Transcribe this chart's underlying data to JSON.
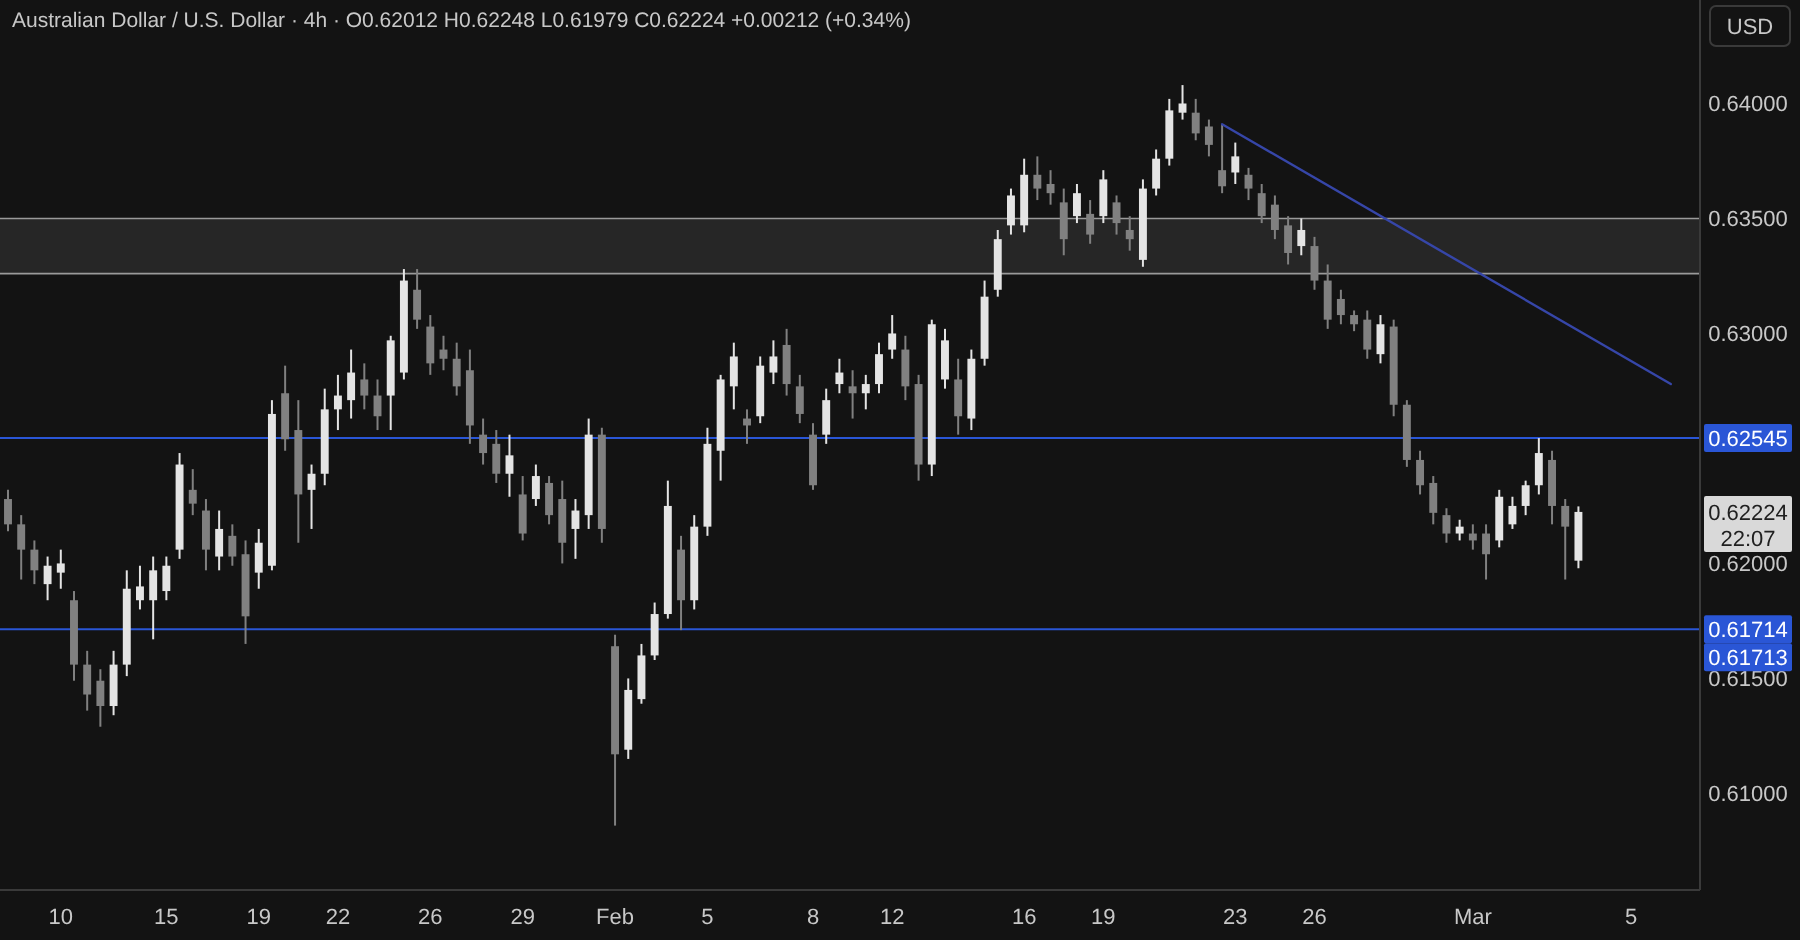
{
  "chart_data": {
    "type": "candlestick",
    "title": "Australian Dollar / U.S. Dollar · 4h · O0.62012 H0.62248 L0.61979 C0.62224 +0.00212 (+0.34%)",
    "ylabel": "USD",
    "categories": [
      null,
      null,
      null,
      null,
      "10",
      null,
      null,
      null,
      null,
      null,
      null,
      null,
      "15",
      null,
      null,
      null,
      null,
      null,
      null,
      "19",
      null,
      null,
      null,
      null,
      null,
      "22",
      null,
      null,
      null,
      null,
      null,
      null,
      "26",
      null,
      null,
      null,
      null,
      null,
      null,
      "29",
      null,
      null,
      null,
      null,
      null,
      null,
      "Feb",
      null,
      null,
      null,
      null,
      null,
      null,
      "5",
      null,
      null,
      null,
      null,
      null,
      null,
      null,
      "8",
      null,
      null,
      null,
      null,
      null,
      "12",
      null,
      null,
      null,
      null,
      null,
      null,
      null,
      null,
      null,
      "16",
      null,
      null,
      null,
      null,
      null,
      "19",
      null,
      null,
      null,
      null,
      null,
      null,
      null,
      null,
      null,
      "23",
      null,
      null,
      null,
      null,
      null,
      "26",
      null,
      null,
      null,
      null,
      null,
      null,
      null,
      null,
      null,
      null,
      null,
      "Mar",
      null,
      null,
      null,
      null,
      null,
      null,
      null,
      null,
      null,
      null,
      null,
      "5",
      null,
      null,
      null
    ],
    "ohlc": [
      [
        0.6228,
        0.6232,
        0.6214,
        0.6217
      ],
      [
        0.6217,
        0.6221,
        0.6193,
        0.6206
      ],
      [
        0.6206,
        0.621,
        0.6191,
        0.6197
      ],
      [
        0.6191,
        0.6203,
        0.6184,
        0.6199
      ],
      [
        0.6196,
        0.6206,
        0.6189,
        0.62
      ],
      [
        0.6184,
        0.6188,
        0.6149,
        0.6156
      ],
      [
        0.6156,
        0.6162,
        0.6136,
        0.6143
      ],
      [
        0.6149,
        0.6154,
        0.6129,
        0.6138
      ],
      [
        0.6138,
        0.6162,
        0.6134,
        0.6156
      ],
      [
        0.6156,
        0.6197,
        0.6151,
        0.6189
      ],
      [
        0.6184,
        0.6199,
        0.618,
        0.619
      ],
      [
        0.6184,
        0.6203,
        0.6167,
        0.6197
      ],
      [
        0.6188,
        0.6203,
        0.6184,
        0.6199
      ],
      [
        0.6206,
        0.6248,
        0.6202,
        0.6243
      ],
      [
        0.6232,
        0.6241,
        0.6221,
        0.6226
      ],
      [
        0.6223,
        0.6228,
        0.6197,
        0.6206
      ],
      [
        0.6203,
        0.6223,
        0.6197,
        0.6215
      ],
      [
        0.6212,
        0.6217,
        0.6199,
        0.6203
      ],
      [
        0.6204,
        0.621,
        0.6165,
        0.6177
      ],
      [
        0.6196,
        0.6215,
        0.6189,
        0.6209
      ],
      [
        0.6199,
        0.6271,
        0.6197,
        0.6265
      ],
      [
        0.6274,
        0.6286,
        0.6249,
        0.6254
      ],
      [
        0.6258,
        0.6271,
        0.6209,
        0.623
      ],
      [
        0.6232,
        0.6243,
        0.6215,
        0.6239
      ],
      [
        0.6239,
        0.6276,
        0.6234,
        0.6267
      ],
      [
        0.6267,
        0.6282,
        0.6258,
        0.6273
      ],
      [
        0.6271,
        0.6293,
        0.6263,
        0.6283
      ],
      [
        0.628,
        0.6287,
        0.6267,
        0.6273
      ],
      [
        0.6273,
        0.628,
        0.6258,
        0.6264
      ],
      [
        0.6273,
        0.6299,
        0.6258,
        0.6297
      ],
      [
        0.6283,
        0.6328,
        0.628,
        0.6323
      ],
      [
        0.6319,
        0.6328,
        0.6302,
        0.6306
      ],
      [
        0.6303,
        0.6308,
        0.6282,
        0.6287
      ],
      [
        0.6293,
        0.6299,
        0.6284,
        0.6289
      ],
      [
        0.6289,
        0.6296,
        0.6273,
        0.6277
      ],
      [
        0.6284,
        0.6293,
        0.6252,
        0.626
      ],
      [
        0.6256,
        0.6263,
        0.6243,
        0.6248
      ],
      [
        0.6252,
        0.6258,
        0.6235,
        0.6239
      ],
      [
        0.6239,
        0.6256,
        0.6229,
        0.6247
      ],
      [
        0.623,
        0.6238,
        0.621,
        0.6213
      ],
      [
        0.6228,
        0.6243,
        0.6225,
        0.6238
      ],
      [
        0.6235,
        0.6238,
        0.6217,
        0.6221
      ],
      [
        0.6228,
        0.6236,
        0.62,
        0.6209
      ],
      [
        0.6215,
        0.6228,
        0.6202,
        0.6223
      ],
      [
        0.6221,
        0.6263,
        0.6215,
        0.6256
      ],
      [
        0.6256,
        0.6259,
        0.6209,
        0.6215
      ],
      [
        0.6164,
        0.6169,
        0.6086,
        0.6117
      ],
      [
        0.6119,
        0.615,
        0.6115,
        0.6145
      ],
      [
        0.6141,
        0.6165,
        0.6139,
        0.616
      ],
      [
        0.616,
        0.6183,
        0.6158,
        0.6178
      ],
      [
        0.6178,
        0.6236,
        0.6176,
        0.6225
      ],
      [
        0.6206,
        0.6212,
        0.6171,
        0.6184
      ],
      [
        0.6184,
        0.6221,
        0.618,
        0.6216
      ],
      [
        0.6216,
        0.6259,
        0.6212,
        0.6252
      ],
      [
        0.6249,
        0.6282,
        0.6236,
        0.628
      ],
      [
        0.6277,
        0.6296,
        0.6267,
        0.629
      ],
      [
        0.6263,
        0.6267,
        0.6252,
        0.626
      ],
      [
        0.6264,
        0.629,
        0.6261,
        0.6286
      ],
      [
        0.6283,
        0.6297,
        0.6278,
        0.629
      ],
      [
        0.6295,
        0.6302,
        0.6273,
        0.6278
      ],
      [
        0.6277,
        0.6282,
        0.6261,
        0.6265
      ],
      [
        0.6256,
        0.6261,
        0.6232,
        0.6234
      ],
      [
        0.6256,
        0.6276,
        0.6252,
        0.6271
      ],
      [
        0.6278,
        0.6289,
        0.6274,
        0.6283
      ],
      [
        0.6277,
        0.6284,
        0.6263,
        0.6274
      ],
      [
        0.6274,
        0.6282,
        0.6267,
        0.6278
      ],
      [
        0.6278,
        0.6296,
        0.6274,
        0.6291
      ],
      [
        0.6293,
        0.6308,
        0.6289,
        0.63
      ],
      [
        0.6293,
        0.6299,
        0.6271,
        0.6277
      ],
      [
        0.6278,
        0.6282,
        0.6236,
        0.6243
      ],
      [
        0.6243,
        0.6306,
        0.6238,
        0.6304
      ],
      [
        0.628,
        0.6302,
        0.6276,
        0.6297
      ],
      [
        0.628,
        0.6289,
        0.6256,
        0.6264
      ],
      [
        0.6263,
        0.6293,
        0.6258,
        0.6289
      ],
      [
        0.6289,
        0.6323,
        0.6286,
        0.6316
      ],
      [
        0.6319,
        0.6345,
        0.6316,
        0.6341
      ],
      [
        0.6347,
        0.6363,
        0.6343,
        0.636
      ],
      [
        0.6347,
        0.6376,
        0.6344,
        0.6369
      ],
      [
        0.6369,
        0.6377,
        0.6358,
        0.6363
      ],
      [
        0.6365,
        0.6371,
        0.6356,
        0.6361
      ],
      [
        0.6357,
        0.6363,
        0.6334,
        0.6341
      ],
      [
        0.6351,
        0.6365,
        0.6348,
        0.6361
      ],
      [
        0.6352,
        0.6358,
        0.6339,
        0.6343
      ],
      [
        0.6351,
        0.6371,
        0.6348,
        0.6367
      ],
      [
        0.6357,
        0.636,
        0.6343,
        0.6348
      ],
      [
        0.6345,
        0.6351,
        0.6336,
        0.6341
      ],
      [
        0.6332,
        0.6367,
        0.6329,
        0.6363
      ],
      [
        0.6363,
        0.638,
        0.636,
        0.6376
      ],
      [
        0.6376,
        0.6402,
        0.6373,
        0.6397
      ],
      [
        0.6396,
        0.6408,
        0.6393,
        0.64
      ],
      [
        0.6396,
        0.6402,
        0.6384,
        0.6387
      ],
      [
        0.639,
        0.6393,
        0.6377,
        0.6382
      ],
      [
        0.6371,
        0.6391,
        0.6361,
        0.6364
      ],
      [
        0.637,
        0.6383,
        0.6365,
        0.6377
      ],
      [
        0.6369,
        0.6372,
        0.6358,
        0.6363
      ],
      [
        0.6361,
        0.6365,
        0.6348,
        0.6351
      ],
      [
        0.6356,
        0.636,
        0.6341,
        0.6345
      ],
      [
        0.6347,
        0.6351,
        0.633,
        0.6335
      ],
      [
        0.6338,
        0.635,
        0.6334,
        0.6345
      ],
      [
        0.6338,
        0.6342,
        0.6319,
        0.6323
      ],
      [
        0.6323,
        0.633,
        0.6302,
        0.6306
      ],
      [
        0.6315,
        0.6319,
        0.6304,
        0.6308
      ],
      [
        0.6308,
        0.631,
        0.6301,
        0.6304
      ],
      [
        0.6306,
        0.631,
        0.6289,
        0.6293
      ],
      [
        0.6291,
        0.6308,
        0.6287,
        0.6304
      ],
      [
        0.6303,
        0.6306,
        0.6264,
        0.6269
      ],
      [
        0.6269,
        0.6271,
        0.6242,
        0.6245
      ],
      [
        0.6245,
        0.6249,
        0.623,
        0.6234
      ],
      [
        0.6235,
        0.6238,
        0.6217,
        0.6222
      ],
      [
        0.6221,
        0.6224,
        0.6209,
        0.6213
      ],
      [
        0.6213,
        0.6219,
        0.621,
        0.6216
      ],
      [
        0.6213,
        0.6217,
        0.6206,
        0.621
      ],
      [
        0.6213,
        0.6217,
        0.6193,
        0.6204
      ],
      [
        0.621,
        0.6232,
        0.6207,
        0.6229
      ],
      [
        0.6217,
        0.6229,
        0.6215,
        0.6225
      ],
      [
        0.6225,
        0.6236,
        0.6221,
        0.6234
      ],
      [
        0.6234,
        0.62545,
        0.623,
        0.6248
      ],
      [
        0.6245,
        0.6249,
        0.6217,
        0.6225
      ],
      [
        0.6225,
        0.6228,
        0.6193,
        0.6216
      ],
      [
        0.62012,
        0.62248,
        0.61979,
        0.62224
      ],
      null,
      null,
      null,
      null,
      null,
      null,
      null
    ],
    "colors": [
      "#808080",
      "#808080",
      "#808080",
      "#e4e4e4",
      "#e4e4e4",
      "#808080",
      "#808080",
      "#808080",
      "#e4e4e4",
      "#e4e4e4",
      "#e4e4e4",
      "#e4e4e4",
      "#e4e4e4",
      "#e4e4e4",
      "#808080",
      "#808080",
      "#e4e4e4",
      "#808080",
      "#808080",
      "#e4e4e4",
      "#e4e4e4",
      "#808080",
      "#808080",
      "#e4e4e4",
      "#e4e4e4",
      "#e4e4e4",
      "#e4e4e4",
      "#808080",
      "#808080",
      "#e4e4e4",
      "#e4e4e4",
      "#808080",
      "#808080",
      "#808080",
      "#808080",
      "#808080",
      "#808080",
      "#808080",
      "#e4e4e4",
      "#808080",
      "#e4e4e4",
      "#808080",
      "#808080",
      "#e4e4e4",
      "#e4e4e4",
      "#808080",
      "#808080",
      "#e4e4e4",
      "#e4e4e4",
      "#e4e4e4",
      "#e4e4e4",
      "#808080",
      "#e4e4e4",
      "#e4e4e4",
      "#e4e4e4",
      "#e4e4e4",
      "#808080",
      "#e4e4e4",
      "#e4e4e4",
      "#808080",
      "#808080",
      "#808080",
      "#e4e4e4",
      "#e4e4e4",
      "#808080",
      "#e4e4e4",
      "#e4e4e4",
      "#e4e4e4",
      "#808080",
      "#808080",
      "#e4e4e4",
      "#e4e4e4",
      "#808080",
      "#e4e4e4",
      "#e4e4e4",
      "#e4e4e4",
      "#e4e4e4",
      "#e4e4e4",
      "#808080",
      "#808080",
      "#808080",
      "#e4e4e4",
      "#808080",
      "#e4e4e4",
      "#808080",
      "#808080",
      "#e4e4e4",
      "#e4e4e4",
      "#e4e4e4",
      "#e4e4e4",
      "#808080",
      "#808080",
      "#808080",
      "#e4e4e4",
      "#808080",
      "#808080",
      "#808080",
      "#808080",
      "#e4e4e4",
      "#808080",
      "#808080",
      "#808080",
      "#808080",
      "#808080",
      "#e4e4e4",
      "#808080",
      "#808080",
      "#808080",
      "#808080",
      "#808080",
      "#e4e4e4",
      "#808080",
      "#808080",
      "#e4e4e4",
      "#e4e4e4",
      "#e4e4e4",
      "#e4e4e4",
      "#808080",
      "#808080",
      "#e4e4e4",
      null,
      null,
      null,
      null,
      null,
      null,
      null
    ],
    "series": [
      {
        "type": "line",
        "color": "#3646a8",
        "values": [
          null,
          null,
          null,
          null,
          null,
          null,
          null,
          null,
          null,
          null,
          null,
          null,
          null,
          null,
          null,
          null,
          null,
          null,
          null,
          null,
          null,
          null,
          null,
          null,
          null,
          null,
          null,
          null,
          null,
          null,
          null,
          null,
          null,
          null,
          null,
          null,
          null,
          null,
          null,
          null,
          null,
          null,
          null,
          null,
          null,
          null,
          null,
          null,
          null,
          null,
          null,
          null,
          null,
          null,
          null,
          null,
          null,
          null,
          null,
          null,
          null,
          null,
          null,
          null,
          null,
          null,
          null,
          null,
          null,
          null,
          null,
          null,
          null,
          null,
          null,
          null,
          null,
          null,
          null,
          null,
          null,
          null,
          null,
          null,
          null,
          null,
          null,
          null,
          null,
          null,
          null,
          null,
          0.6391,
          null,
          null,
          null,
          null,
          null,
          null,
          null,
          null,
          null,
          null,
          null,
          null,
          null,
          null,
          null,
          null,
          null,
          null,
          null,
          null,
          null,
          null,
          null,
          null,
          null,
          null,
          null,
          null,
          null,
          null,
          null,
          null,
          null,
          0.6278
        ]
      }
    ],
    "ylim": [
      0.6058,
      0.6445
    ],
    "yticks": [
      {
        "value": 0.61,
        "label": "0.61000"
      },
      {
        "value": 0.615,
        "label": "0.61500"
      },
      {
        "value": 0.62,
        "label": "0.62000"
      },
      {
        "value": 0.63,
        "label": "0.63000"
      },
      {
        "value": 0.635,
        "label": "0.63500"
      },
      {
        "value": 0.64,
        "label": "0.64000"
      }
    ],
    "bands": [
      {
        "axis": "y",
        "from": 0.6326,
        "to": 0.635,
        "color": "#262626"
      }
    ],
    "ref_lines": [
      {
        "axis": "y",
        "value": 0.62545,
        "label": "0.62545",
        "color": "#2a56d6"
      },
      {
        "axis": "y",
        "value": 0.61714,
        "label": "0.61714",
        "color": "#2a56d6"
      }
    ],
    "annotations": [
      "0.62224",
      "22:07",
      "0.61713"
    ]
  }
}
